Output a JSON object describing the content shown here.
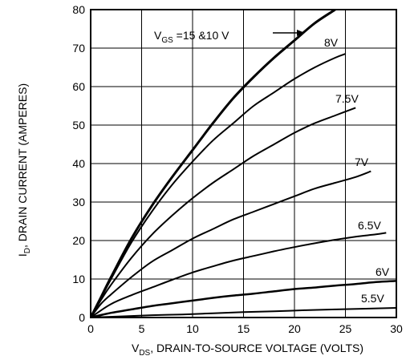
{
  "chart_data": {
    "type": "line",
    "title": "",
    "xlabel": {
      "prefix": "V",
      "sub": "DS",
      "text": ", DRAIN-TO-SOURCE VOLTAGE (VOLTS)"
    },
    "ylabel": {
      "prefix": "I",
      "sub": "D",
      "text": ", DRAIN CURRENT (AMPERES)"
    },
    "xlim": [
      0,
      30
    ],
    "ylim": [
      0,
      80
    ],
    "xticks": [
      0,
      5,
      10,
      15,
      20,
      25,
      30
    ],
    "yticks": [
      0,
      10,
      20,
      30,
      40,
      50,
      60,
      70,
      80
    ],
    "grid": true,
    "legend": "none",
    "series": [
      {
        "name": "15 & 10 V",
        "label": {
          "prefix": "V",
          "sub": "GS",
          "text": " =15 &10 V"
        },
        "x": [
          0,
          1,
          2,
          4,
          6,
          8,
          10,
          12,
          14,
          16,
          18,
          20,
          22,
          24
        ],
        "y": [
          0,
          5.2,
          10.5,
          20.5,
          29,
          36.5,
          43.5,
          50.5,
          57,
          62.5,
          67.5,
          72,
          76.5,
          80
        ]
      },
      {
        "name": "8V",
        "label": {
          "text": "8V"
        },
        "x": [
          0,
          1,
          2,
          4,
          6,
          8,
          10,
          12,
          14,
          16,
          18,
          20,
          22,
          24,
          25
        ],
        "y": [
          0,
          5,
          10,
          19.5,
          27.5,
          34.5,
          40.5,
          46,
          50.5,
          55,
          58.5,
          62,
          65,
          67.5,
          68.5
        ]
      },
      {
        "name": "7.5V",
        "label": {
          "text": "7.5V"
        },
        "x": [
          0,
          1,
          2,
          4,
          6,
          8,
          10,
          12,
          14,
          16,
          18,
          20,
          22,
          24,
          26
        ],
        "y": [
          0,
          4.5,
          8.5,
          15.5,
          21.5,
          26.5,
          31,
          35,
          38.5,
          42,
          45,
          48,
          50.5,
          52.5,
          54.5
        ]
      },
      {
        "name": "7V",
        "label": {
          "text": "7V"
        },
        "x": [
          0,
          1,
          2,
          4,
          6,
          8,
          10,
          12,
          14,
          16,
          18,
          20,
          22,
          24,
          26,
          27.5
        ],
        "y": [
          0,
          3.5,
          6,
          10.5,
          14.5,
          17.5,
          20.5,
          23,
          25.5,
          27.5,
          29.5,
          31.5,
          33.5,
          35,
          36.5,
          38
        ]
      },
      {
        "name": "6.5V",
        "label": {
          "text": "6.5V"
        },
        "x": [
          0,
          2,
          4,
          6,
          8,
          10,
          12,
          14,
          16,
          18,
          20,
          22,
          24,
          26,
          28,
          29
        ],
        "y": [
          0,
          3.5,
          5.8,
          7.8,
          9.8,
          11.7,
          13.3,
          14.8,
          16,
          17.2,
          18.3,
          19.3,
          20.2,
          21,
          21.6,
          22
        ]
      },
      {
        "name": "6V",
        "label": {
          "text": "6V"
        },
        "x": [
          0,
          2,
          4,
          6,
          8,
          10,
          12,
          14,
          16,
          18,
          20,
          22,
          24,
          26,
          28,
          30
        ],
        "y": [
          0,
          1.2,
          2.1,
          3,
          3.7,
          4.4,
          5.1,
          5.7,
          6.2,
          6.8,
          7.4,
          7.8,
          8.3,
          8.7,
          9.2,
          9.5
        ]
      },
      {
        "name": "5.5V",
        "label": {
          "text": "5.5V"
        },
        "x": [
          0,
          3,
          6,
          9,
          12,
          15,
          18,
          21,
          24,
          27,
          30
        ],
        "y": [
          0,
          0.3,
          0.6,
          0.8,
          1.1,
          1.4,
          1.6,
          1.9,
          2.1,
          2.3,
          2.5
        ]
      }
    ]
  }
}
